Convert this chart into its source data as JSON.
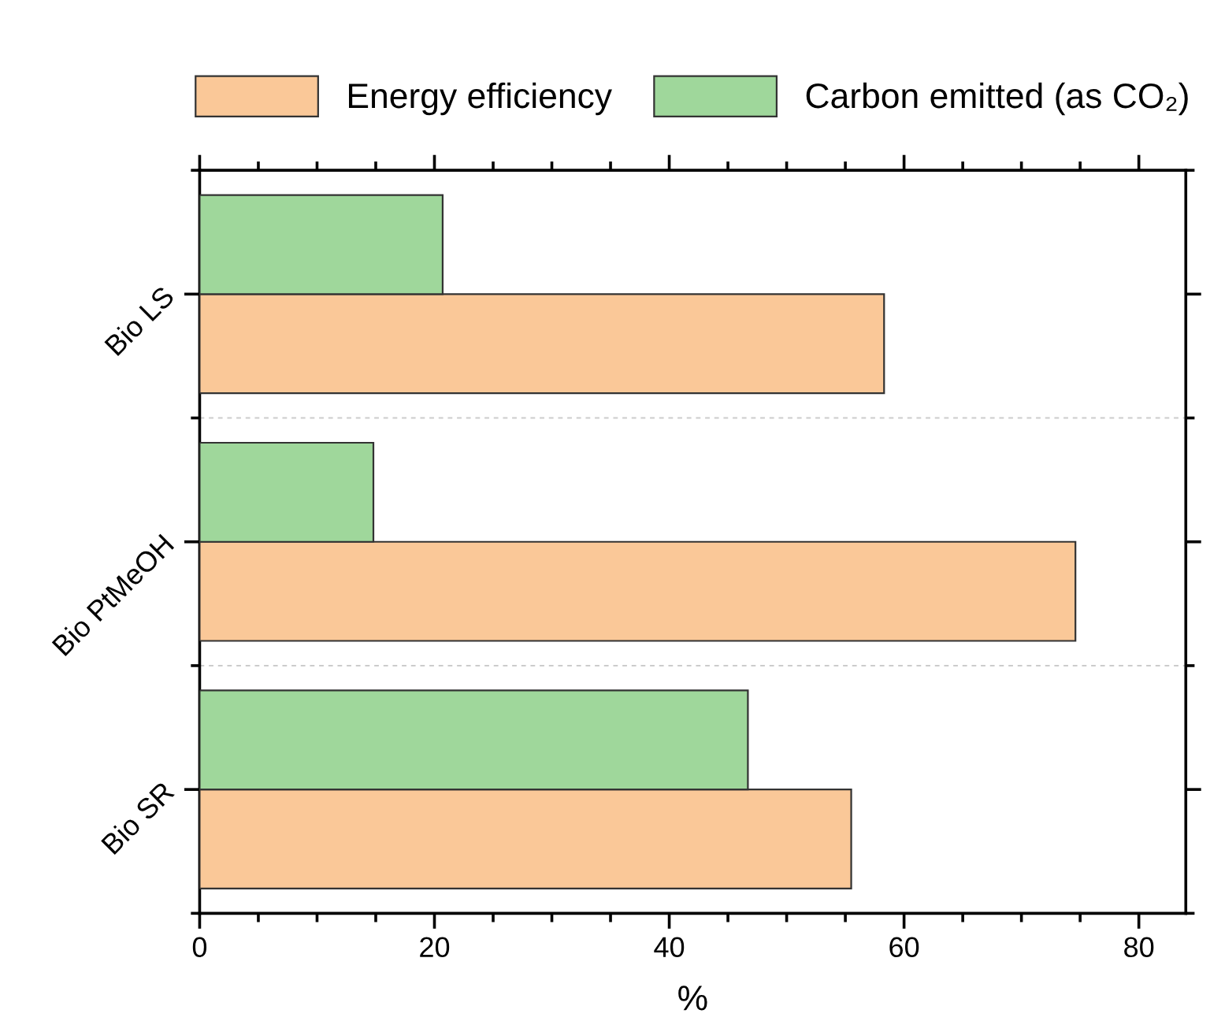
{
  "chart_data": {
    "type": "bar",
    "orientation": "horizontal",
    "xlabel": "%",
    "categories": [
      "Bio LS",
      "Bio PtMeOH",
      "Bio SR"
    ],
    "series": [
      {
        "name": "Energy efficiency",
        "color": "#fac898",
        "values": [
          58.3,
          74.6,
          55.5
        ]
      },
      {
        "name": "Carbon emitted (as CO₂)",
        "color": "#9fd79b",
        "values": [
          20.7,
          14.8,
          46.7
        ]
      }
    ],
    "xlim": [
      0,
      84
    ],
    "xticks": [
      0,
      20,
      40,
      60,
      80
    ],
    "grid": "y",
    "legend": "top"
  }
}
